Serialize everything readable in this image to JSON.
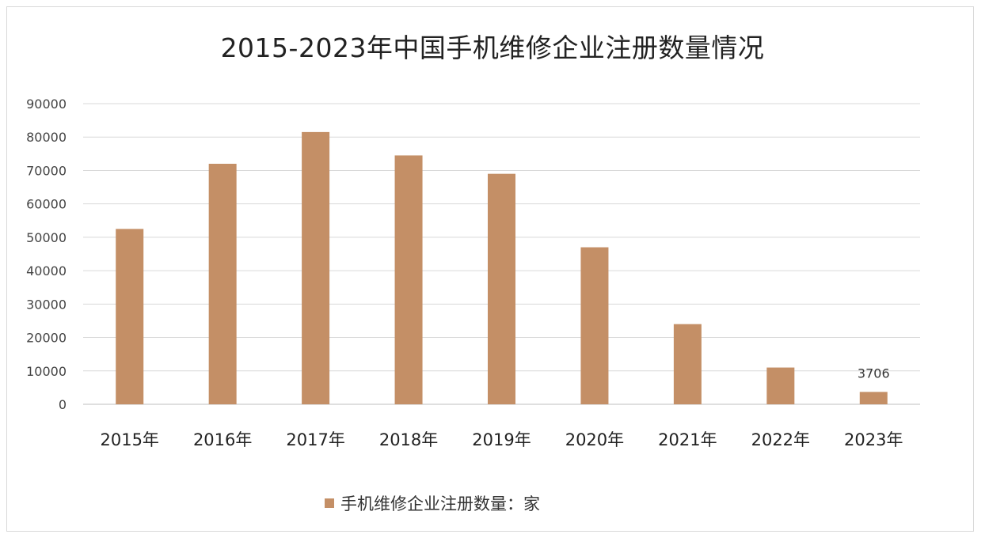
{
  "chart_data": {
    "type": "bar",
    "title": "2015-2023年中国手机维修企业注册数量情况",
    "categories": [
      "2015年",
      "2016年",
      "2017年",
      "2018年",
      "2019年",
      "2020年",
      "2021年",
      "2022年",
      "2023年"
    ],
    "series": [
      {
        "name": "手机维修企业注册数量：家",
        "values": [
          52500,
          72000,
          81500,
          74500,
          69000,
          47000,
          24000,
          11000,
          3706
        ],
        "color": "#C48F66"
      }
    ],
    "data_labels": [
      null,
      null,
      null,
      null,
      null,
      null,
      null,
      null,
      "3706"
    ],
    "ylim": [
      0,
      90000
    ],
    "yticks": [
      "0",
      "10000",
      "20000",
      "30000",
      "40000",
      "50000",
      "60000",
      "70000",
      "80000",
      "90000"
    ],
    "grid": true,
    "legend_position": "bottom"
  }
}
